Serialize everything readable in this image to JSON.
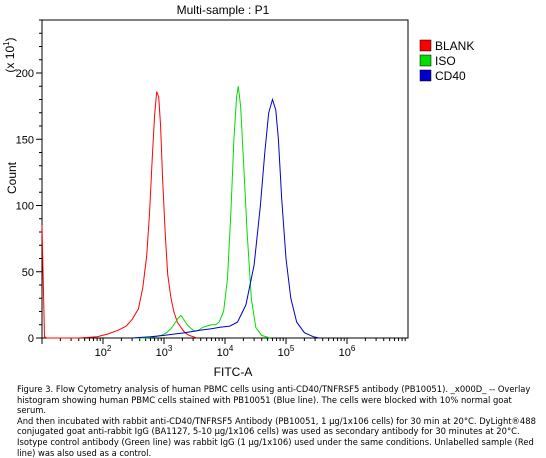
{
  "chart_data": {
    "type": "histogram",
    "title": "Multi-sample : P1",
    "xlabel": "FITC-A",
    "ylabel": "Count",
    "y_multiplier": "(x 10^1)",
    "x_scale": "log",
    "xlim": [
      10,
      10000000
    ],
    "ylim": [
      0,
      240
    ],
    "x_ticks": [
      {
        "base": "10",
        "exp": "2",
        "value": 100
      },
      {
        "base": "10",
        "exp": "3",
        "value": 1000
      },
      {
        "base": "10",
        "exp": "4",
        "value": 10000
      },
      {
        "base": "10",
        "exp": "5",
        "value": 100000
      },
      {
        "base": "10",
        "exp": "6",
        "value": 1000000
      }
    ],
    "y_ticks": [
      "0",
      "50",
      "100",
      "150",
      "200"
    ],
    "y_tick_values": [
      0,
      50,
      100,
      150,
      200
    ],
    "legend_position": "top-right",
    "series": [
      {
        "name": "BLANK",
        "color": "#ff0000",
        "x": [
          10,
          11,
          12,
          13.8,
          20,
          40,
          80,
          120,
          180,
          240,
          300,
          380,
          450,
          520,
          580,
          640,
          700,
          760,
          820,
          880,
          950,
          1050,
          1150,
          1300,
          1450,
          1650,
          1900,
          2200,
          2600,
          3000,
          3500
        ],
        "y": [
          85,
          1,
          0,
          0,
          0,
          0,
          1,
          3,
          6,
          9,
          14,
          22,
          38,
          62,
          95,
          135,
          168,
          186,
          182,
          160,
          120,
          78,
          48,
          30,
          20,
          12,
          8,
          4,
          2,
          1,
          0
        ]
      },
      {
        "name": "ISO",
        "color": "#00dd00",
        "x": [
          300,
          500,
          700,
          900,
          1100,
          1300,
          1500,
          1700,
          1900,
          2100,
          2400,
          2800,
          3200,
          3700,
          4300,
          5000,
          6000,
          7000,
          8000,
          9500,
          11000,
          12500,
          14000,
          15500,
          16500,
          18000,
          20000,
          23000,
          27000,
          32000,
          40000,
          55000
        ],
        "y": [
          0,
          0,
          1,
          2,
          4,
          7,
          11,
          15,
          17,
          14,
          10,
          7,
          5,
          6,
          8,
          9,
          10,
          10,
          12,
          20,
          45,
          95,
          150,
          182,
          190,
          175,
          135,
          80,
          30,
          8,
          2,
          0
        ]
      },
      {
        "name": "CD40",
        "color": "#0000cc",
        "x": [
          300,
          600,
          1000,
          1500,
          2200,
          3000,
          4000,
          6000,
          8000,
          12000,
          16000,
          22000,
          30000,
          38000,
          45000,
          52000,
          60000,
          68000,
          75000,
          85000,
          100000,
          120000,
          150000,
          200000,
          280000,
          350000
        ],
        "y": [
          0,
          1,
          2,
          3,
          4,
          5,
          6,
          7,
          8,
          9,
          12,
          25,
          55,
          100,
          140,
          170,
          180,
          172,
          150,
          105,
          60,
          30,
          12,
          4,
          1,
          0
        ]
      }
    ]
  },
  "caption": {
    "line1": "Figure 3. Flow Cytometry analysis of human PBMC cells using anti-CD40/TNFRSF5 antibody (PB10051). _x000D_ -- Overlay",
    "line2": "histogram showing human PBMC cells stained with PB10051 (Blue line). The cells were blocked with 10% normal goat serum.",
    "line3": "And then incubated with rabbit anti-CD40/TNFRSF5 Antibody (PB10051, 1 μg/1x106 cells) for 30 min at 20°C. DyLight®488",
    "line4": "conjugated goat anti-rabbit IgG (BA1127, 5-10 μg/1x106 cells) was used as secondary antibody for 30 minutes at 20°C.",
    "line5": "Isotype control antibody (Green line) was rabbit IgG (1 μg/1x106) used under the same conditions. Unlabelled sample (Red",
    "line6": "line) was also used as a control."
  }
}
